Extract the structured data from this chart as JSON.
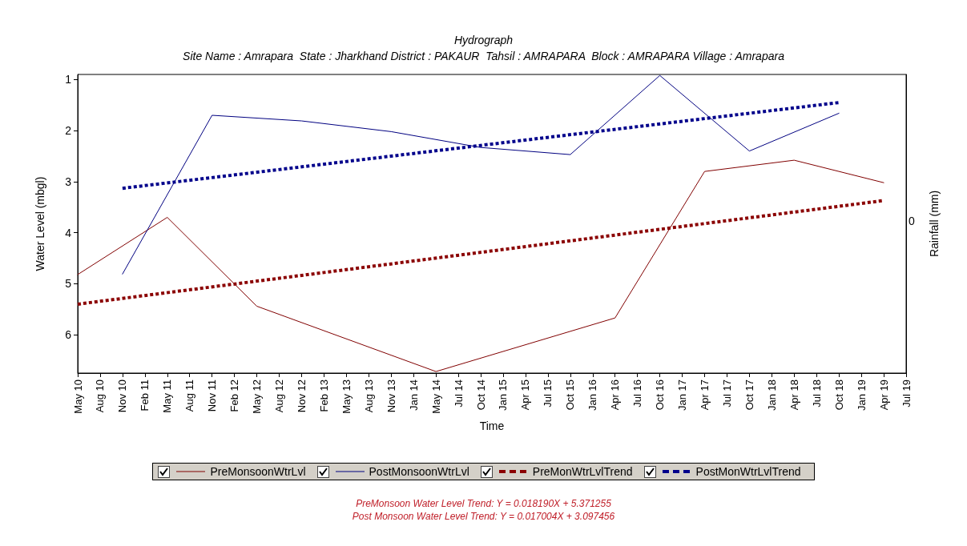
{
  "chart_data": {
    "type": "line",
    "title": "Hydrograph",
    "subtitle": "Site Name : Amrapara  State : Jharkhand District : PAKAUR  Tahsil : AMRAPARA  Block : AMRAPARA Village : Amrapara",
    "xlabel": "Time",
    "ylabel": "Water Level (mbgl)",
    "y2label": "Rainfall (mm)",
    "categories": [
      "May 10",
      "Aug 10",
      "Nov 10",
      "Feb 11",
      "May 11",
      "Aug 11",
      "Nov 11",
      "Feb 12",
      "May 12",
      "Aug 12",
      "Nov 12",
      "Feb 13",
      "May 13",
      "Aug 13",
      "Nov 13",
      "Jan 14",
      "May 14",
      "Jul 14",
      "Oct 14",
      "Jan 15",
      "Apr 15",
      "Jul 15",
      "Oct 15",
      "Jan 16",
      "Apr 16",
      "Jul 16",
      "Oct 16",
      "Jan 17",
      "Apr 17",
      "Jul 17",
      "Oct 17",
      "Jan 18",
      "Apr 18",
      "Jul 18",
      "Oct 18",
      "Jan 19",
      "Apr 19",
      "Jul 19"
    ],
    "series": [
      {
        "name": "PreMonsoonWtrLvl",
        "color": "#800000",
        "line_style": "solid",
        "x": [
          "May 10",
          "May 11",
          "May 12",
          "May 14",
          "Apr 16",
          "Apr 17",
          "Apr 18",
          "Apr 19"
        ],
        "values": [
          4.82,
          3.7,
          5.44,
          6.72,
          5.67,
          2.8,
          2.58,
          3.02
        ]
      },
      {
        "name": "PostMonsoonWtrLvl",
        "color": "#000080",
        "line_style": "solid",
        "x": [
          "Nov 10",
          "Nov 11",
          "Nov 12",
          "Nov 13",
          "Oct 14",
          "Oct 15",
          "Oct 16",
          "Oct 17",
          "Oct 18"
        ],
        "values": [
          4.81,
          1.7,
          1.81,
          2.02,
          2.33,
          2.47,
          0.92,
          2.4,
          1.66
        ]
      },
      {
        "name": "PreMonWtrLvlTrend",
        "color": "#8b0000",
        "line_style": "dashed",
        "x": [
          "May 10",
          "Apr 19"
        ],
        "values": [
          5.4,
          3.37
        ]
      },
      {
        "name": "PostMonWtrLvlTrend",
        "color": "#00008b",
        "line_style": "dashed",
        "x": [
          "Nov 10",
          "Oct 18"
        ],
        "values": [
          3.13,
          1.45
        ]
      }
    ],
    "ylim": [
      6.75,
      0.9
    ],
    "yticks": [
      1,
      2,
      3,
      4,
      5,
      6
    ],
    "grid": false,
    "legend": "bottom",
    "marker": "none",
    "annotations": [
      "0",
      "PreMonsoon Water Level Trend: Y = 0.018190X + 5.371255",
      "Post Monsoon Water Level Trend: Y = 0.017004X + 3.097456"
    ]
  }
}
